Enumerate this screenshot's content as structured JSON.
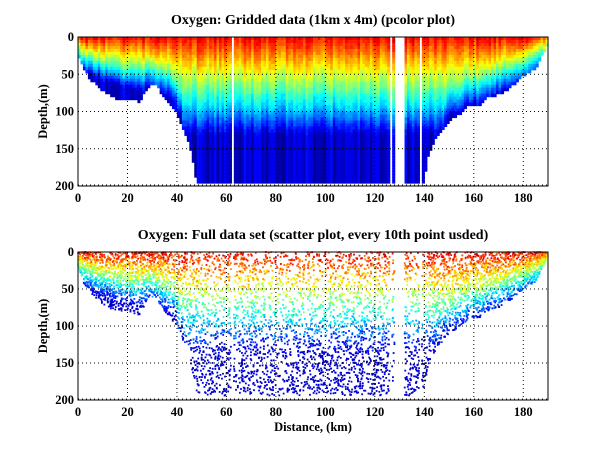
{
  "chart_data": [
    {
      "type": "heatmap",
      "title": "Oxygen: Gridded data (1km x 4m) (pcolor plot)",
      "xlabel": "",
      "ylabel": "Depth,(m)",
      "xlim": [
        0,
        190
      ],
      "ylim": [
        200,
        0
      ],
      "y_reversed": true,
      "xticks": [
        "0",
        "20",
        "40",
        "60",
        "80",
        "100",
        "120",
        "140",
        "160",
        "180"
      ],
      "yticks": [
        "0",
        "50",
        "100",
        "150",
        "200"
      ],
      "grid": true,
      "grid_style": "dotted",
      "colormap": "jet",
      "cell_size": "1km x 4m",
      "bottom_profile": {
        "distance_km": [
          0,
          2,
          5,
          10,
          15,
          20,
          25,
          28,
          31,
          35,
          40,
          45,
          48,
          60,
          100,
          125,
          130,
          140,
          141,
          145,
          150,
          155,
          158,
          162,
          165,
          170,
          175,
          180,
          185,
          188,
          190
        ],
        "max_depth_m": [
          20,
          40,
          55,
          70,
          80,
          80,
          85,
          65,
          60,
          80,
          100,
          140,
          195,
          195,
          195,
          195,
          195,
          195,
          160,
          130,
          110,
          100,
          90,
          90,
          80,
          75,
          65,
          50,
          40,
          20,
          5
        ]
      },
      "gaps_km": [
        [
          62,
          63
        ],
        [
          126,
          127
        ],
        [
          128,
          132
        ],
        [
          138,
          139
        ]
      ],
      "surface_value": "high (red)",
      "deep_value": "low (blue)"
    },
    {
      "type": "scatter",
      "title": "Oxygen: Full data set (scatter plot, every 10th point usded)",
      "xlabel": "Distance, (km)",
      "ylabel": "Depth,(m)",
      "xlim": [
        0,
        190
      ],
      "ylim": [
        200,
        0
      ],
      "y_reversed": true,
      "xticks": [
        "0",
        "20",
        "40",
        "60",
        "80",
        "100",
        "120",
        "140",
        "160",
        "180"
      ],
      "yticks": [
        "0",
        "50",
        "100",
        "150",
        "200"
      ],
      "grid": true,
      "grid_style": "dotted",
      "colormap": "jet"
    }
  ]
}
